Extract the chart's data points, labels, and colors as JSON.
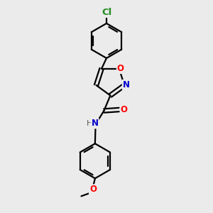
{
  "background_color": "#ebebeb",
  "bond_color": "#000000",
  "atom_colors": {
    "Cl": "#228B22",
    "O": "#ff0000",
    "N": "#0000cc",
    "H": "#555555",
    "C": "#000000"
  },
  "figsize": [
    3.0,
    3.0
  ],
  "dpi": 100,
  "lw": 1.6
}
